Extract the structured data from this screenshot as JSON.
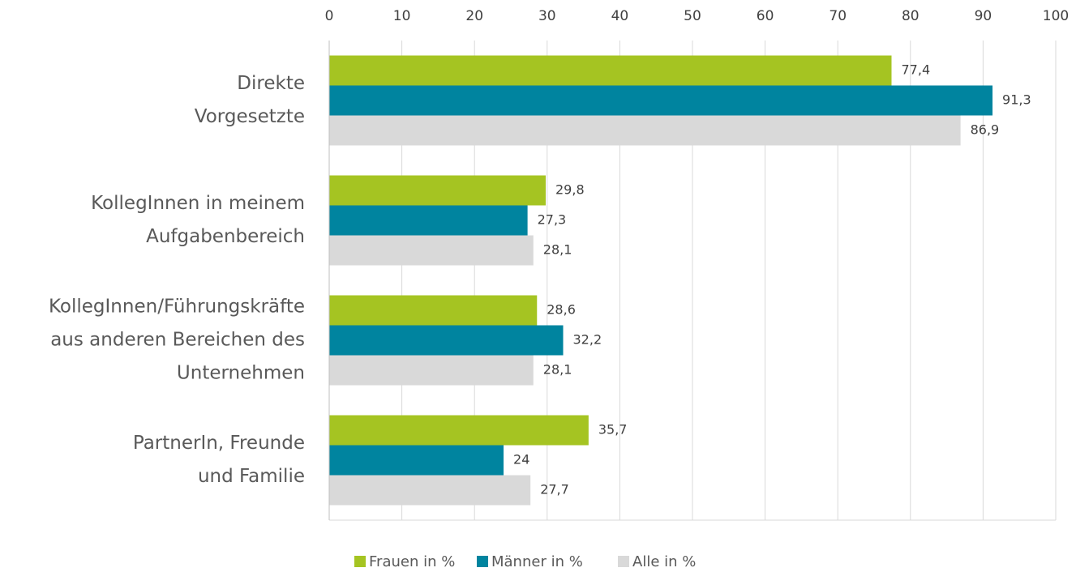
{
  "chart_data": {
    "type": "barh",
    "categories": [
      [
        "Direkte",
        "Vorgesetzte"
      ],
      [
        "KollegInnen in meinem",
        "Aufgabenbereich"
      ],
      [
        "KollegInnen/Führungskräfte",
        "aus anderen Bereichen des",
        "Unternehmen"
      ],
      [
        "PartnerIn, Freunde",
        "und Familie"
      ]
    ],
    "series": [
      {
        "name": "Frauen in %",
        "color": "#a5c422",
        "values": [
          77.4,
          29.8,
          28.6,
          35.7
        ],
        "value_labels": [
          "77,4",
          "29,8",
          "28,6",
          "35,7"
        ]
      },
      {
        "name": "Männer in %",
        "color": "#00849f",
        "values": [
          91.3,
          27.3,
          32.2,
          24
        ],
        "value_labels": [
          "91,3",
          "27,3",
          "32,2",
          "24"
        ]
      },
      {
        "name": "Alle in %",
        "color": "#d9d9d9",
        "values": [
          86.9,
          28.1,
          28.1,
          27.7
        ],
        "value_labels": [
          "86,9",
          "28,1",
          "28,1",
          "27,7"
        ]
      }
    ],
    "xlim": [
      0,
      100
    ],
    "xticks": [
      0,
      10,
      20,
      30,
      40,
      50,
      60,
      70,
      80,
      90,
      100
    ],
    "grid": true,
    "legend": "bottom"
  }
}
